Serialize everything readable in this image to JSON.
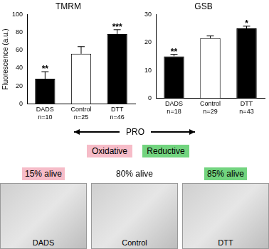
{
  "chart_data": [
    {
      "type": "bar",
      "title": "TMRM",
      "y_label": "Fluorescence (a.u.)",
      "categories": [
        "DADS",
        "Control",
        "DTT"
      ],
      "category_notes": [
        "n=10",
        "n=25",
        "n=46"
      ],
      "values": [
        28,
        56,
        78
      ],
      "errors": [
        8,
        8,
        5
      ],
      "significance": [
        "**",
        null,
        "***"
      ],
      "colors": [
        "#000000",
        "#ffffff",
        "#000000"
      ],
      "ylim": [
        0,
        100
      ],
      "yticks": [
        0,
        20,
        40,
        60,
        80,
        100
      ],
      "grid": false
    },
    {
      "type": "bar",
      "title": "GSB",
      "categories": [
        "DADS",
        "Control",
        "DTT"
      ],
      "category_notes": [
        "n=18",
        "n=29",
        "n=43"
      ],
      "values": [
        15,
        21.5,
        25
      ],
      "errors": [
        0.7,
        0.8,
        0.8
      ],
      "significance": [
        "**",
        null,
        "*"
      ],
      "colors": [
        "#000000",
        "#ffffff",
        "#000000"
      ],
      "ylim": [
        0,
        30
      ],
      "yticks": [
        0,
        10,
        20,
        30
      ],
      "grid": false
    }
  ],
  "gradient": {
    "label": "PRO",
    "left": {
      "label": "Oxidative",
      "color": "#f6bcc8"
    },
    "right": {
      "label": "Reductive",
      "color": "#72d47f"
    }
  },
  "panels": [
    {
      "caption": "DADS",
      "survival": "15% alive",
      "color": "#f6bcc8"
    },
    {
      "caption": "Control",
      "survival": "80% alive"
    },
    {
      "caption": "DTT",
      "survival": "85% alive",
      "color": "#72d47f"
    }
  ]
}
